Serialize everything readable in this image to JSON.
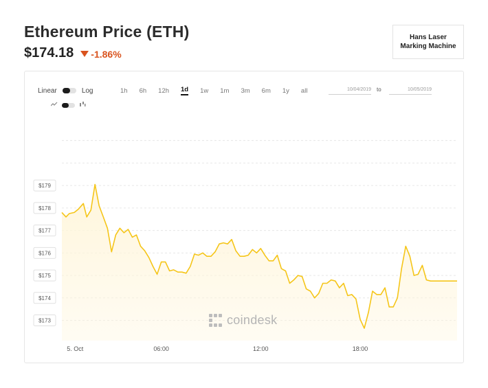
{
  "header": {
    "title": "Ethereum Price (ETH)",
    "price": "$174.18",
    "change": "-1.86%",
    "change_color": "#d9531e"
  },
  "ad": {
    "text": "Hans Laser Marking Machine"
  },
  "controls": {
    "scale_left": "Linear",
    "scale_right": "Log",
    "ranges": [
      "1h",
      "6h",
      "12h",
      "1d",
      "1w",
      "1m",
      "3m",
      "6m",
      "1y",
      "all"
    ],
    "active_range": "1d",
    "date_from": "10/04/2019",
    "date_to": "10/05/2019",
    "to_label": "to",
    "chart_type_icons": [
      "line-chart-icon",
      "candlestick-chart-icon"
    ]
  },
  "watermark": "coindesk",
  "chart_data": {
    "type": "area",
    "line_color": "#f5c518",
    "fill_color": "#fff6dc",
    "grid": true,
    "ylim": [
      172.1,
      181.6
    ],
    "yticks": [
      173,
      174,
      175,
      176,
      177,
      178,
      179
    ],
    "ytick_labels": [
      "$173",
      "$174",
      "$175",
      "$176",
      "$177",
      "$178",
      "$179"
    ],
    "xlim": [
      0,
      23.85
    ],
    "xticks": [
      0.3,
      6,
      12,
      18
    ],
    "xtick_labels": [
      "5. Oct",
      "06:00",
      "12:00",
      "18:00"
    ],
    "series": [
      {
        "x": [
          0,
          0.25,
          0.45,
          0.75,
          1.0,
          1.3,
          1.5,
          1.75,
          2.0,
          2.25,
          2.5,
          2.75,
          3.0,
          3.25,
          3.5,
          3.75,
          4.0,
          4.25,
          4.5,
          4.75,
          5.0,
          5.25,
          5.5,
          5.75,
          6.0,
          6.25,
          6.5,
          6.75,
          7.0,
          7.25,
          7.5,
          7.75,
          8.0,
          8.25,
          8.5,
          8.75,
          9.0,
          9.25,
          9.5,
          9.75,
          10.0,
          10.25,
          10.5,
          10.75,
          11.0,
          11.25,
          11.5,
          11.75,
          12.0,
          12.25,
          12.5,
          12.75,
          13.0,
          13.25,
          13.5,
          13.75,
          14.0,
          14.25,
          14.5,
          14.75,
          15.0,
          15.25,
          15.5,
          15.75,
          16.0,
          16.25,
          16.5,
          16.75,
          17.0,
          17.25,
          17.5,
          17.75,
          18.0,
          18.25,
          18.5,
          18.75,
          19.0,
          19.25,
          19.5,
          19.75,
          20.0,
          20.25,
          20.5,
          20.75,
          21.0,
          21.25,
          21.5,
          21.75,
          22.0,
          22.25,
          22.5,
          22.75,
          23.0,
          23.25,
          23.5,
          23.85
        ],
        "y": [
          177.8,
          177.6,
          177.75,
          177.8,
          177.95,
          178.2,
          177.6,
          177.9,
          179.05,
          178.1,
          177.6,
          177.1,
          176.05,
          176.8,
          177.1,
          176.9,
          177.05,
          176.7,
          176.8,
          176.3,
          176.1,
          175.8,
          175.4,
          175.05,
          175.6,
          175.6,
          175.2,
          175.25,
          175.15,
          175.15,
          175.1,
          175.4,
          175.95,
          175.9,
          176.0,
          175.85,
          175.85,
          176.05,
          176.4,
          176.45,
          176.4,
          176.6,
          176.1,
          175.85,
          175.85,
          175.9,
          176.15,
          176.0,
          176.2,
          175.9,
          175.65,
          175.65,
          175.9,
          175.3,
          175.2,
          174.65,
          174.8,
          175.0,
          174.95,
          174.4,
          174.3,
          174.0,
          174.2,
          174.65,
          174.65,
          174.8,
          174.75,
          174.45,
          174.65,
          174.1,
          174.15,
          173.95,
          173.05,
          172.65,
          173.35,
          174.3,
          174.15,
          174.15,
          174.45,
          173.6,
          173.6,
          174.0,
          175.3,
          176.3,
          175.85,
          175.0,
          175.05,
          175.45,
          174.8,
          174.75,
          174.75,
          174.75,
          174.75,
          174.75,
          174.75,
          174.75
        ]
      }
    ]
  }
}
